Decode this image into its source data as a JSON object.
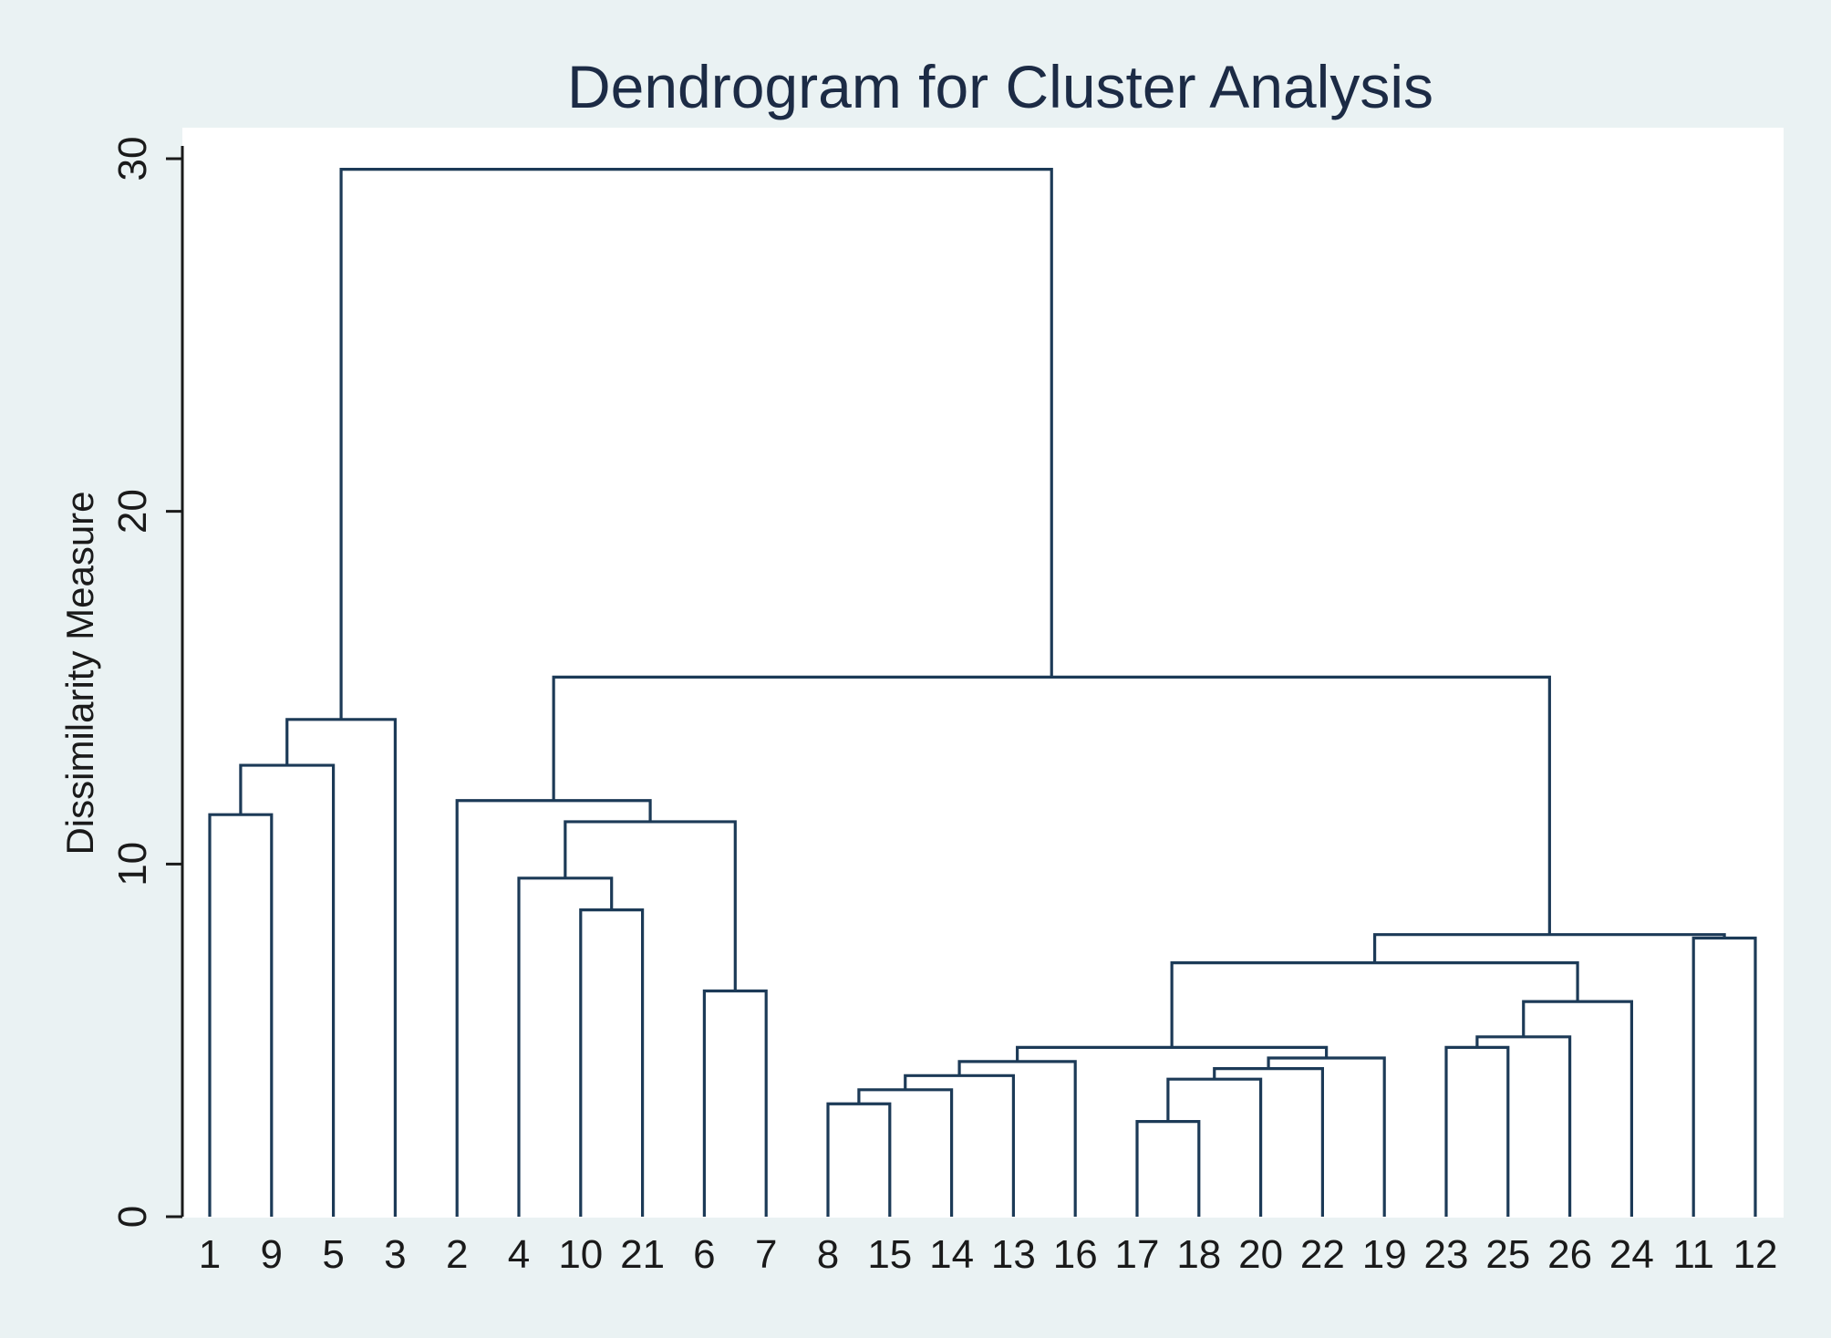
{
  "chart_data": {
    "type": "dendrogram",
    "title": "Dendrogram for Cluster Analysis",
    "ylabel": "Dissimilarity Measure",
    "xlabel": "",
    "ylim": [
      0,
      30
    ],
    "yticks": [
      0,
      10,
      20,
      30
    ],
    "leaves": [
      "1",
      "9",
      "5",
      "3",
      "2",
      "4",
      "10",
      "21",
      "6",
      "7",
      "8",
      "15",
      "14",
      "13",
      "16",
      "17",
      "18",
      "20",
      "22",
      "19",
      "23",
      "25",
      "26",
      "24",
      "11",
      "12"
    ],
    "merges": [
      {
        "left": "1",
        "right": "9",
        "height": 11.4
      },
      {
        "left": "1-9",
        "right": "5",
        "height": 12.8
      },
      {
        "left": "1-9-5",
        "right": "3",
        "height": 14.1
      },
      {
        "left": "10",
        "right": "21",
        "height": 8.7
      },
      {
        "left": "4",
        "right": "10-21",
        "height": 9.6
      },
      {
        "left": "6",
        "right": "7",
        "height": 6.4
      },
      {
        "left": "4-10-21",
        "right": "6-7",
        "height": 11.2
      },
      {
        "left": "2",
        "right": "4-10-21-6-7",
        "height": 11.8
      },
      {
        "left": "8",
        "right": "15",
        "height": 3.2
      },
      {
        "left": "8-15",
        "right": "14",
        "height": 3.6
      },
      {
        "left": "8-15-14",
        "right": "13",
        "height": 4.0
      },
      {
        "left": "8-15-14-13",
        "right": "16",
        "height": 4.4
      },
      {
        "left": "17",
        "right": "18",
        "height": 2.7
      },
      {
        "left": "17-18",
        "right": "20",
        "height": 3.9
      },
      {
        "left": "17-18-20",
        "right": "22",
        "height": 4.2
      },
      {
        "left": "17-18-20-22",
        "right": "19",
        "height": 4.5
      },
      {
        "left": "8…16",
        "right": "17…19",
        "height": 4.8
      },
      {
        "left": "23",
        "right": "25",
        "height": 4.8
      },
      {
        "left": "23-25",
        "right": "26",
        "height": 5.1
      },
      {
        "left": "23-25-26",
        "right": "24",
        "height": 6.1
      },
      {
        "left": "8…19",
        "right": "23…24",
        "height": 7.2
      },
      {
        "left": "11",
        "right": "12",
        "height": 7.9
      },
      {
        "left": "8…24",
        "right": "11-12",
        "height": 8.0
      },
      {
        "left": "2…7",
        "right": "8…12",
        "height": 15.3
      },
      {
        "left": "1…3",
        "right": "2…12",
        "height": 29.7
      }
    ]
  },
  "colors": {
    "background": "#eaf2f3",
    "plot_area": "#ffffff",
    "line": "#1c3a57",
    "text": "#1c2b45",
    "axis": "#1a1a1a"
  }
}
